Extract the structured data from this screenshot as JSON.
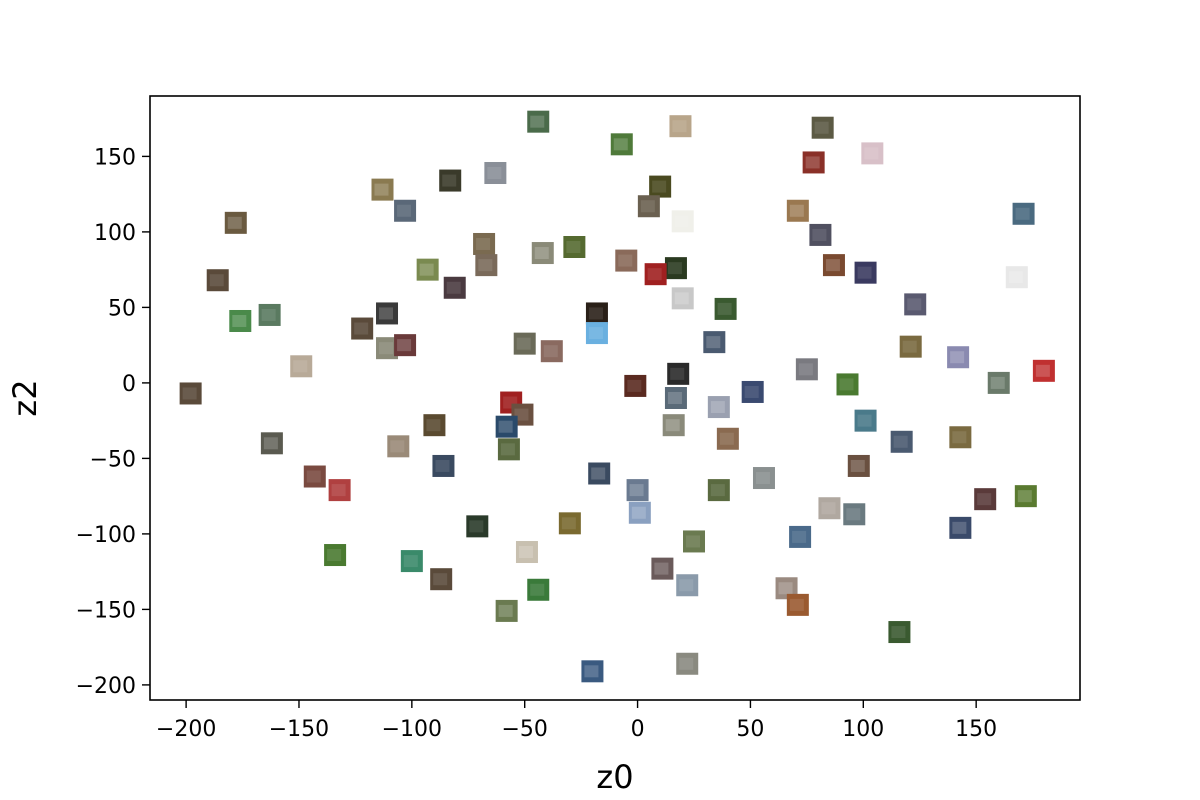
{
  "chart_data": {
    "type": "scatter",
    "title": "",
    "xlabel": "z0",
    "ylabel": "z2",
    "xlim": [
      -216,
      196
    ],
    "ylim": [
      -210,
      190
    ],
    "xticks": [
      -200,
      -150,
      -100,
      -50,
      0,
      50,
      100,
      150
    ],
    "xtick_labels": [
      "−200",
      "−150",
      "−100",
      "−50",
      "0",
      "50",
      "100",
      "150"
    ],
    "yticks": [
      -200,
      -150,
      -100,
      -50,
      0,
      50,
      100,
      150
    ],
    "ytick_labels": [
      "−200",
      "−150",
      "−100",
      "−50",
      "0",
      "50",
      "100",
      "150"
    ],
    "grid": false,
    "marker": "image-thumbnail",
    "points": [
      {
        "x": -44,
        "y": 173,
        "color": "#4a6b4a"
      },
      {
        "x": 19,
        "y": 170,
        "color": "#b8a58a"
      },
      {
        "x": 82,
        "y": 169,
        "color": "#5c5a44"
      },
      {
        "x": -7,
        "y": 158,
        "color": "#4f7a3a"
      },
      {
        "x": 104,
        "y": 152,
        "color": "#d8c0c8"
      },
      {
        "x": -63,
        "y": 139,
        "color": "#8a8f98"
      },
      {
        "x": 78,
        "y": 146,
        "color": "#8a3028"
      },
      {
        "x": -83,
        "y": 134,
        "color": "#3a3a2a"
      },
      {
        "x": 10,
        "y": 130,
        "color": "#4a4a20"
      },
      {
        "x": -113,
        "y": 128,
        "color": "#8a7a50"
      },
      {
        "x": 5,
        "y": 117,
        "color": "#6a6050"
      },
      {
        "x": -103,
        "y": 114,
        "color": "#5a6878"
      },
      {
        "x": 71,
        "y": 114,
        "color": "#9a7850"
      },
      {
        "x": 171,
        "y": 112,
        "color": "#4a6a80"
      },
      {
        "x": 20,
        "y": 107,
        "color": "#f0f0ea"
      },
      {
        "x": -178,
        "y": 106,
        "color": "#6a5a40"
      },
      {
        "x": 81,
        "y": 98,
        "color": "#505060"
      },
      {
        "x": -68,
        "y": 92,
        "color": "#7a6a50"
      },
      {
        "x": -42,
        "y": 86,
        "color": "#8a8a78"
      },
      {
        "x": -28,
        "y": 90,
        "color": "#556a30"
      },
      {
        "x": -5,
        "y": 81,
        "color": "#8a6a5a"
      },
      {
        "x": 87,
        "y": 78,
        "color": "#7a4a30"
      },
      {
        "x": 17,
        "y": 76,
        "color": "#2a3a20"
      },
      {
        "x": 8,
        "y": 72,
        "color": "#a02020"
      },
      {
        "x": -93,
        "y": 75,
        "color": "#7a8a50"
      },
      {
        "x": -67,
        "y": 78,
        "color": "#7a6a5a"
      },
      {
        "x": 101,
        "y": 73,
        "color": "#3a3a60"
      },
      {
        "x": 168,
        "y": 70,
        "color": "#e8e8e8"
      },
      {
        "x": -186,
        "y": 68,
        "color": "#5a4a3a"
      },
      {
        "x": -81,
        "y": 63,
        "color": "#4a3a40"
      },
      {
        "x": 20,
        "y": 56,
        "color": "#c8c8c8"
      },
      {
        "x": 123,
        "y": 52,
        "color": "#5a5a70"
      },
      {
        "x": -163,
        "y": 45,
        "color": "#5a7a60"
      },
      {
        "x": -176,
        "y": 41,
        "color": "#4a8a4a"
      },
      {
        "x": 39,
        "y": 49,
        "color": "#3a5a30"
      },
      {
        "x": -18,
        "y": 46,
        "color": "#2a2018"
      },
      {
        "x": -111,
        "y": 46,
        "color": "#3a3a3a"
      },
      {
        "x": -122,
        "y": 36,
        "color": "#5a4a3a"
      },
      {
        "x": -18,
        "y": 33,
        "color": "#6ab0e0"
      },
      {
        "x": 34,
        "y": 27,
        "color": "#4a5a70"
      },
      {
        "x": -50,
        "y": 26,
        "color": "#6a6a58"
      },
      {
        "x": -111,
        "y": 23,
        "color": "#8a8a78"
      },
      {
        "x": -103,
        "y": 25,
        "color": "#6a3a3a"
      },
      {
        "x": -38,
        "y": 21,
        "color": "#8a6a60"
      },
      {
        "x": 121,
        "y": 24,
        "color": "#7a6a40"
      },
      {
        "x": 142,
        "y": 17,
        "color": "#8a8ab0"
      },
      {
        "x": -149,
        "y": 11,
        "color": "#b8aa98"
      },
      {
        "x": 75,
        "y": 9,
        "color": "#7a7a80"
      },
      {
        "x": 180,
        "y": 8,
        "color": "#c03030"
      },
      {
        "x": 18,
        "y": 6,
        "color": "#2a2a2a"
      },
      {
        "x": 93,
        "y": -1,
        "color": "#4a7a30"
      },
      {
        "x": 160,
        "y": 0,
        "color": "#6a7a6a"
      },
      {
        "x": -1,
        "y": -2,
        "color": "#5a2a20"
      },
      {
        "x": -198,
        "y": -7,
        "color": "#5a4a3a"
      },
      {
        "x": 17,
        "y": -10,
        "color": "#5a6a78"
      },
      {
        "x": 51,
        "y": -6,
        "color": "#3a4a70"
      },
      {
        "x": -56,
        "y": -13,
        "color": "#a02020"
      },
      {
        "x": 36,
        "y": -16,
        "color": "#9aa0b0"
      },
      {
        "x": -51,
        "y": -21,
        "color": "#6a5040"
      },
      {
        "x": 40,
        "y": -37,
        "color": "#8a6a50"
      },
      {
        "x": -58,
        "y": -29,
        "color": "#2a4a6a"
      },
      {
        "x": 101,
        "y": -25,
        "color": "#4a7a8a"
      },
      {
        "x": -90,
        "y": -28,
        "color": "#5a4a30"
      },
      {
        "x": 16,
        "y": -28,
        "color": "#8a8a7a"
      },
      {
        "x": 117,
        "y": -39,
        "color": "#4a5a70"
      },
      {
        "x": 143,
        "y": -36,
        "color": "#7a6a40"
      },
      {
        "x": -162,
        "y": -40,
        "color": "#5a5a50"
      },
      {
        "x": -106,
        "y": -42,
        "color": "#9a8a78"
      },
      {
        "x": -57,
        "y": -44,
        "color": "#5a6a40"
      },
      {
        "x": 98,
        "y": -55,
        "color": "#6a5040"
      },
      {
        "x": -86,
        "y": -55,
        "color": "#3a4a60"
      },
      {
        "x": -143,
        "y": -62,
        "color": "#7a4a40"
      },
      {
        "x": -17,
        "y": -60,
        "color": "#3a4a60"
      },
      {
        "x": 56,
        "y": -63,
        "color": "#8a9090"
      },
      {
        "x": -132,
        "y": -71,
        "color": "#b04040"
      },
      {
        "x": 0,
        "y": -71,
        "color": "#6a7a90"
      },
      {
        "x": 36,
        "y": -71,
        "color": "#5a6a40"
      },
      {
        "x": 154,
        "y": -77,
        "color": "#5a3a3a"
      },
      {
        "x": 172,
        "y": -75,
        "color": "#5a7a30"
      },
      {
        "x": 85,
        "y": -83,
        "color": "#b0a8a0"
      },
      {
        "x": 96,
        "y": -87,
        "color": "#6a7a80"
      },
      {
        "x": 1,
        "y": -86,
        "color": "#8aa0c0"
      },
      {
        "x": -30,
        "y": -93,
        "color": "#7a6a30"
      },
      {
        "x": -71,
        "y": -95,
        "color": "#2a3a2a"
      },
      {
        "x": 143,
        "y": -96,
        "color": "#3a4a6a"
      },
      {
        "x": 72,
        "y": -102,
        "color": "#4a6a8a"
      },
      {
        "x": 25,
        "y": -105,
        "color": "#6a7a50"
      },
      {
        "x": -49,
        "y": -112,
        "color": "#c8c0b0"
      },
      {
        "x": -134,
        "y": -114,
        "color": "#4a7a30"
      },
      {
        "x": -100,
        "y": -118,
        "color": "#3a8a6a"
      },
      {
        "x": 11,
        "y": -123,
        "color": "#6a5a5a"
      },
      {
        "x": -87,
        "y": -130,
        "color": "#5a4a3a"
      },
      {
        "x": 22,
        "y": -134,
        "color": "#8a9aaa"
      },
      {
        "x": 66,
        "y": -136,
        "color": "#9a8a80"
      },
      {
        "x": -44,
        "y": -137,
        "color": "#3a7a3a"
      },
      {
        "x": 71,
        "y": -147,
        "color": "#9a5a30"
      },
      {
        "x": -58,
        "y": -151,
        "color": "#6a7a50"
      },
      {
        "x": 116,
        "y": -165,
        "color": "#3a5a30"
      },
      {
        "x": 22,
        "y": -186,
        "color": "#8a8a80"
      },
      {
        "x": -20,
        "y": -191,
        "color": "#3a5a80"
      }
    ]
  }
}
